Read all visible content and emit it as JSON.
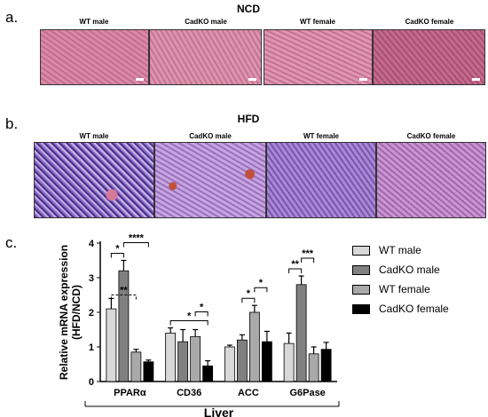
{
  "panel_a": {
    "label": "a.",
    "title": "NCD",
    "conditions": [
      "WT male",
      "CadKO male",
      "WT female",
      "CadKO female"
    ]
  },
  "panel_b": {
    "label": "b.",
    "title": "HFD",
    "conditions": [
      "WT male",
      "CadKO male",
      "WT female",
      "CadKO female"
    ]
  },
  "panel_c": {
    "label": "c.",
    "group_label": "Liver"
  },
  "colors": {
    "wt_male": "#d8d8d8",
    "cadko_male": "#808080",
    "wt_female": "#a9a9a9",
    "cadko_female": "#000000",
    "he_pink": "#c96a8a",
    "he_purple": "#8f5cb8"
  },
  "chart_data": {
    "type": "bar",
    "categories": [
      "PPARα",
      "CD36",
      "ACC",
      "G6Pase"
    ],
    "ylabel": "Relative mRNA expression\n(HFD/NCD)",
    "xlabel": "Liver",
    "ylim": [
      0,
      4
    ],
    "yticks": [
      0,
      1,
      2,
      3,
      4
    ],
    "legend_position": "top-right",
    "series": [
      {
        "name": "WT male",
        "color": "#d8d8d8",
        "values": [
          2.1,
          1.4,
          1.0,
          1.1
        ],
        "errors": [
          0.3,
          0.15,
          0.05,
          0.3
        ]
      },
      {
        "name": "CadKO male",
        "color": "#808080",
        "values": [
          3.2,
          1.15,
          1.2,
          2.8
        ],
        "errors": [
          0.3,
          0.35,
          0.15,
          0.25
        ]
      },
      {
        "name": "WT female",
        "color": "#a9a9a9",
        "values": [
          0.85,
          1.3,
          2.0,
          0.8
        ],
        "errors": [
          0.08,
          0.2,
          0.2,
          0.2
        ]
      },
      {
        "name": "CadKO female",
        "color": "#000000",
        "values": [
          0.57,
          0.45,
          1.15,
          0.93
        ],
        "errors": [
          0.05,
          0.15,
          0.3,
          0.2
        ]
      }
    ],
    "significance": [
      {
        "category": "PPARα",
        "from": 0,
        "to": 1,
        "label": "*"
      },
      {
        "category": "PPARα",
        "from": 1,
        "to": 3,
        "label": "****"
      },
      {
        "category": "PPARα",
        "from": 0,
        "to": 2,
        "label": "**",
        "dashed": true
      },
      {
        "category": "CD36",
        "from": 0,
        "to": 3,
        "label": "*"
      },
      {
        "category": "CD36",
        "from": 2,
        "to": 3,
        "label": "*"
      },
      {
        "category": "ACC",
        "from": 1,
        "to": 2,
        "label": "*"
      },
      {
        "category": "ACC",
        "from": 2,
        "to": 3,
        "label": "*"
      },
      {
        "category": "G6Pase",
        "from": 0,
        "to": 1,
        "label": "**"
      },
      {
        "category": "G6Pase",
        "from": 1,
        "to": 2,
        "label": "***"
      }
    ]
  }
}
